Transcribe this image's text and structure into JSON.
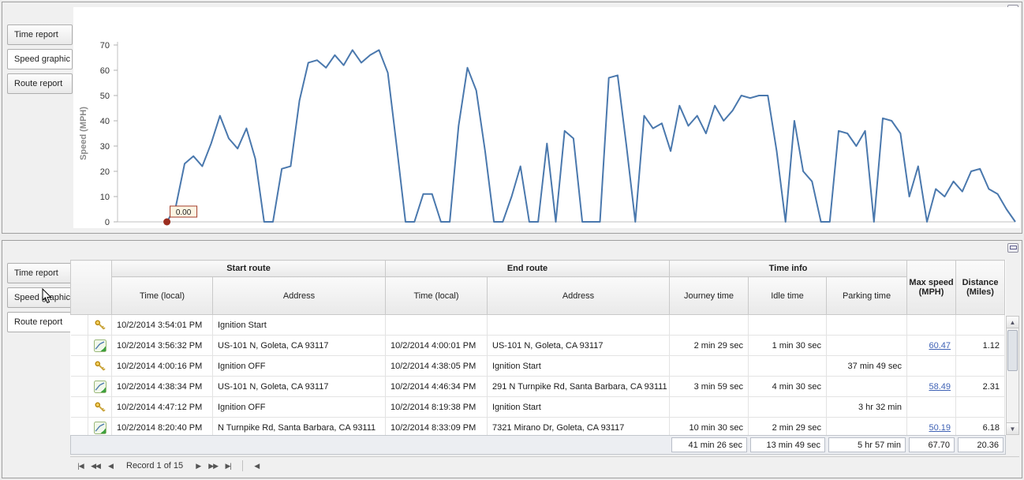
{
  "colors": {
    "chart_line": "#4a78ad",
    "link": "#3f62b5",
    "marker_red": "#9b2d1f"
  },
  "icons": {
    "scroll_up": "▲",
    "scroll_down": "▼"
  },
  "top_panel": {
    "tabs": [
      {
        "label": "Time report",
        "selected": false
      },
      {
        "label": "Speed graphic",
        "selected": true
      },
      {
        "label": "Route report",
        "selected": false
      }
    ]
  },
  "chart_data": {
    "type": "line",
    "title": "",
    "xlabel": "",
    "ylabel": "Speed (MPH)",
    "ylim": [
      0,
      70
    ],
    "yticks": [
      0,
      10,
      20,
      30,
      40,
      50,
      60,
      70
    ],
    "grid": false,
    "legend": false,
    "line_color": "#4a78ad",
    "x_start_fraction": 0.055,
    "marker": {
      "index": 0,
      "label": "0.00",
      "color": "#9b2d1f"
    },
    "values": [
      0,
      6,
      23,
      26,
      22,
      31,
      42,
      33,
      29,
      37,
      25,
      0,
      0,
      21,
      22,
      48,
      63,
      64,
      61,
      66,
      62,
      68,
      63,
      66,
      68,
      59,
      30,
      0,
      0,
      11,
      11,
      0,
      0,
      38,
      61,
      52,
      28,
      0,
      0,
      10,
      22,
      0,
      0,
      31,
      0,
      36,
      33,
      0,
      0,
      0,
      57,
      58,
      30,
      0,
      42,
      37,
      39,
      28,
      46,
      38,
      42,
      35,
      46,
      40,
      44,
      50,
      49,
      50,
      50,
      28,
      0,
      40,
      20,
      16,
      0,
      0,
      36,
      35,
      30,
      36,
      0,
      41,
      40,
      35,
      10,
      22,
      0,
      13,
      10,
      16,
      12,
      20,
      21,
      13,
      11,
      5,
      0
    ]
  },
  "bottom_panel": {
    "tabs": [
      {
        "label": "Time report",
        "selected": false
      },
      {
        "label": "Speed graphic",
        "selected": false
      },
      {
        "label": "Route report",
        "selected": true
      }
    ],
    "grid": {
      "groups": [
        "Start route",
        "End route",
        "Time info"
      ],
      "columns": [
        "Time (local)",
        "Address",
        "Time (local)",
        "Address",
        "Journey time",
        "Idle time",
        "Parking time"
      ],
      "max_speed_header": "Max speed (MPH)",
      "distance_header": "Distance (Miles)",
      "rows": [
        {
          "icon": "key",
          "start_time": "10/2/2014 3:54:01 PM",
          "start_address": "Ignition Start",
          "end_time": "",
          "end_address": "",
          "journey": "",
          "idle": "",
          "parking": "",
          "max_speed": "",
          "distance": ""
        },
        {
          "icon": "route",
          "start_time": "10/2/2014 3:56:32 PM",
          "start_address": "US-101 N, Goleta, CA 93117",
          "end_time": "10/2/2014 4:00:01 PM",
          "end_address": "US-101 N, Goleta, CA 93117",
          "journey": "2 min 29 sec",
          "idle": "1 min 30 sec",
          "parking": "",
          "max_speed": "60.47",
          "distance": "1.12"
        },
        {
          "icon": "key",
          "start_time": "10/2/2014 4:00:16 PM",
          "start_address": "Ignition OFF",
          "end_time": "10/2/2014 4:38:05 PM",
          "end_address": "Ignition Start",
          "journey": "",
          "idle": "",
          "parking": "37 min 49 sec",
          "max_speed": "",
          "distance": ""
        },
        {
          "icon": "route",
          "start_time": "10/2/2014 4:38:34 PM",
          "start_address": "US-101 N, Goleta, CA 93117",
          "end_time": "10/2/2014 4:46:34 PM",
          "end_address": "291 N Turnpike Rd, Santa Barbara, CA 93111",
          "journey": "3 min 59 sec",
          "idle": "4 min 30 sec",
          "parking": "",
          "max_speed": "58.49",
          "distance": "2.31"
        },
        {
          "icon": "key",
          "start_time": "10/2/2014 4:47:12 PM",
          "start_address": "Ignition OFF",
          "end_time": "10/2/2014 8:19:38 PM",
          "end_address": "Ignition Start",
          "journey": "",
          "idle": "",
          "parking": "3 hr 32 min",
          "max_speed": "",
          "distance": ""
        },
        {
          "icon": "route",
          "start_time": "10/2/2014 8:20:40 PM",
          "start_address": "N Turnpike Rd, Santa Barbara, CA 93111",
          "end_time": "10/2/2014 8:33:09 PM",
          "end_address": "7321 Mirano Dr, Goleta, CA 93117",
          "journey": "10 min 30 sec",
          "idle": "2 min 29 sec",
          "parking": "",
          "max_speed": "50.19",
          "distance": "6.18"
        }
      ],
      "summary": {
        "journey": "41 min 26 sec",
        "idle": "13 min 49 sec",
        "parking": "5 hr 57 min",
        "max_speed": "67.70",
        "distance": "20.36"
      },
      "pager": {
        "first": "|◀",
        "prev_group": "◀◀",
        "prev": "◀",
        "record_text": "Record 1 of 15",
        "next": "▶",
        "next_group": "▶▶",
        "last": "▶|",
        "hscroll_left": "◀"
      }
    }
  }
}
